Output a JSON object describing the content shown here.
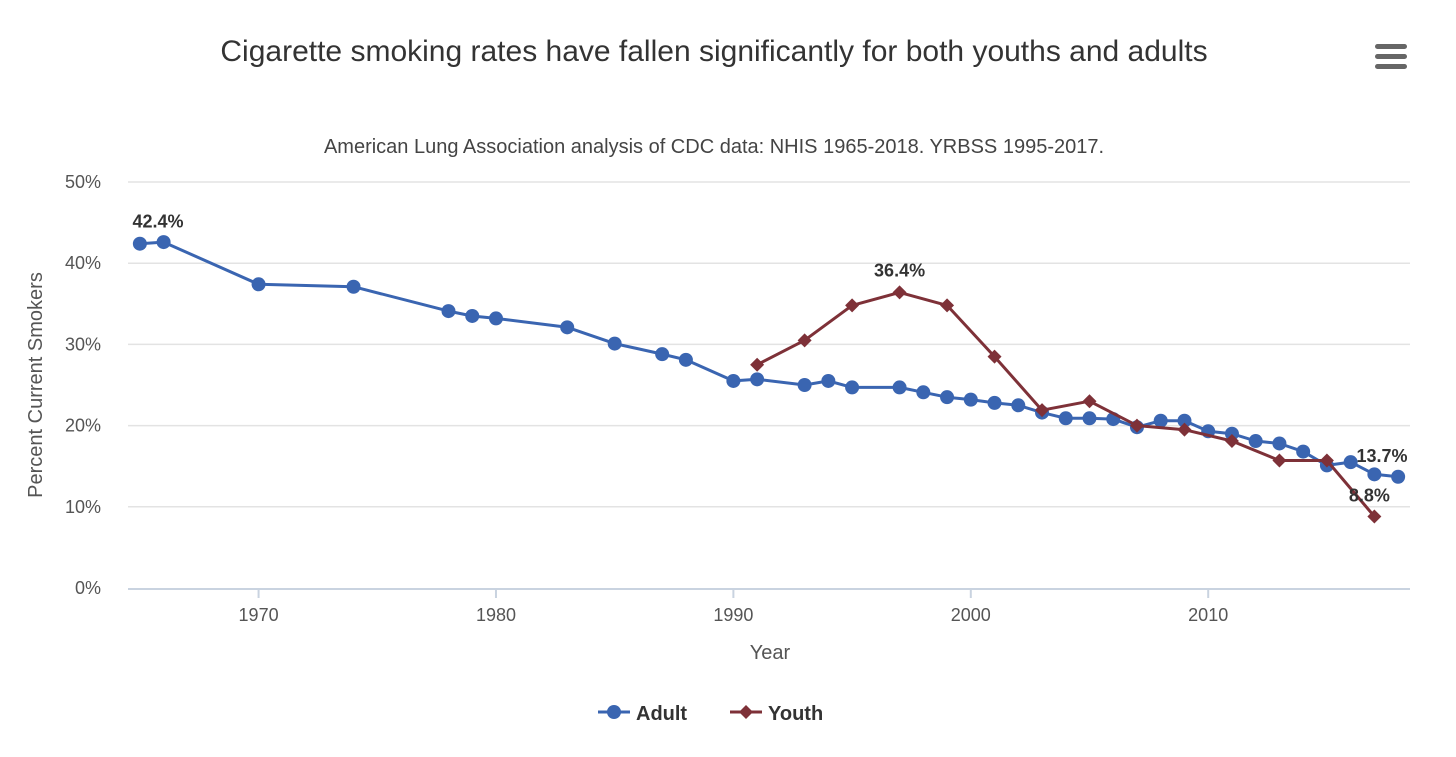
{
  "chart_data": {
    "type": "line",
    "title": "Cigarette smoking rates have fallen significantly for both youths and adults",
    "subtitle": "American Lung Association analysis of CDC data: NHIS 1965-2018. YRBSS 1995-2017.",
    "xlabel": "Year",
    "ylabel": "Percent Current Smokers",
    "xlim": [
      1964.5,
      2018.5
    ],
    "ylim": [
      0,
      50
    ],
    "x_ticks": [
      1970,
      1980,
      1990,
      2000,
      2010
    ],
    "y_ticks": [
      0,
      10,
      20,
      30,
      40,
      50
    ],
    "y_tick_suffix": "%",
    "grid": true,
    "legend_position": "bottom-center",
    "series": [
      {
        "name": "Adult",
        "color": "#3a65b1",
        "marker": "circle",
        "x": [
          1965,
          1966,
          1970,
          1974,
          1978,
          1979,
          1980,
          1983,
          1985,
          1987,
          1988,
          1990,
          1991,
          1993,
          1994,
          1995,
          1997,
          1998,
          1999,
          2000,
          2001,
          2002,
          2003,
          2004,
          2005,
          2006,
          2007,
          2008,
          2009,
          2010,
          2011,
          2012,
          2013,
          2014,
          2015,
          2016,
          2017,
          2018
        ],
        "y": [
          42.4,
          42.6,
          37.4,
          37.1,
          34.1,
          33.5,
          33.2,
          32.1,
          30.1,
          28.8,
          28.1,
          25.5,
          25.7,
          25.0,
          25.5,
          24.7,
          24.7,
          24.1,
          23.5,
          23.2,
          22.8,
          22.5,
          21.6,
          20.9,
          20.9,
          20.8,
          19.8,
          20.6,
          20.6,
          19.3,
          19.0,
          18.1,
          17.8,
          16.8,
          15.1,
          15.5,
          14.0,
          13.7
        ]
      },
      {
        "name": "Youth",
        "color": "#7e3138",
        "marker": "diamond",
        "x": [
          1991,
          1993,
          1995,
          1997,
          1999,
          2001,
          2003,
          2005,
          2007,
          2009,
          2011,
          2013,
          2015,
          2017
        ],
        "y": [
          27.5,
          30.5,
          34.8,
          36.4,
          34.8,
          28.5,
          21.9,
          23.0,
          20.0,
          19.5,
          18.1,
          15.7,
          15.7,
          8.8
        ]
      }
    ],
    "annotations": [
      {
        "series": "Adult",
        "x": 1965,
        "text": "42.4%"
      },
      {
        "series": "Youth",
        "x": 1997,
        "text": "36.4%"
      },
      {
        "series": "Adult",
        "x": 2018,
        "text": "13.7%"
      },
      {
        "series": "Youth",
        "x": 2017,
        "text": "8.8%"
      }
    ]
  },
  "toolbar": {
    "menu_icon": "hamburger-menu-icon"
  }
}
